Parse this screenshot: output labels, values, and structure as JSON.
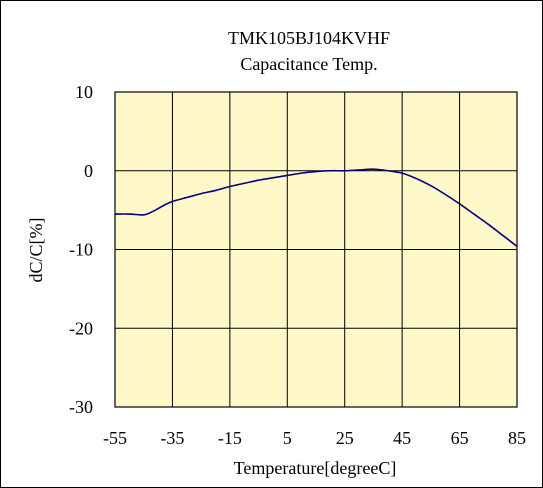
{
  "chart_data": {
    "type": "line",
    "title": "TMK105BJ104KVHF",
    "subtitle": "Capacitance Temp.",
    "xlabel": "Temperature[degreeC]",
    "ylabel": "dC/C[%]",
    "xlim": [
      -55,
      85
    ],
    "ylim": [
      -30,
      10
    ],
    "xticks": [
      -55,
      -35,
      -15,
      5,
      25,
      45,
      65,
      85
    ],
    "yticks": [
      10,
      0,
      -10,
      -20,
      -30
    ],
    "xtick_labels": [
      "-55",
      "-35",
      "-15",
      "5",
      "25",
      "45",
      "65",
      "85"
    ],
    "ytick_labels": [
      "10",
      "0",
      "-10",
      "-20",
      "-30"
    ],
    "grid": true,
    "legend": "none",
    "plot_background": "#fff8c8",
    "line_color": "#000080",
    "series": [
      {
        "x": [
          -55,
          -50,
          -45,
          -42,
          -38,
          -35,
          -30,
          -25,
          -20,
          -15,
          -10,
          -5,
          0,
          5,
          10,
          15,
          20,
          25,
          30,
          35,
          40,
          45,
          50,
          55,
          60,
          65,
          70,
          75,
          80,
          85
        ],
        "y": [
          -5.5,
          -5.5,
          -5.6,
          -5.2,
          -4.4,
          -3.9,
          -3.4,
          -2.9,
          -2.5,
          -2.0,
          -1.6,
          -1.2,
          -0.9,
          -0.6,
          -0.3,
          -0.1,
          0.0,
          0.0,
          0.1,
          0.2,
          0.0,
          -0.3,
          -1.0,
          -1.9,
          -3.0,
          -4.2,
          -5.5,
          -6.8,
          -8.2,
          -9.6
        ]
      }
    ]
  }
}
